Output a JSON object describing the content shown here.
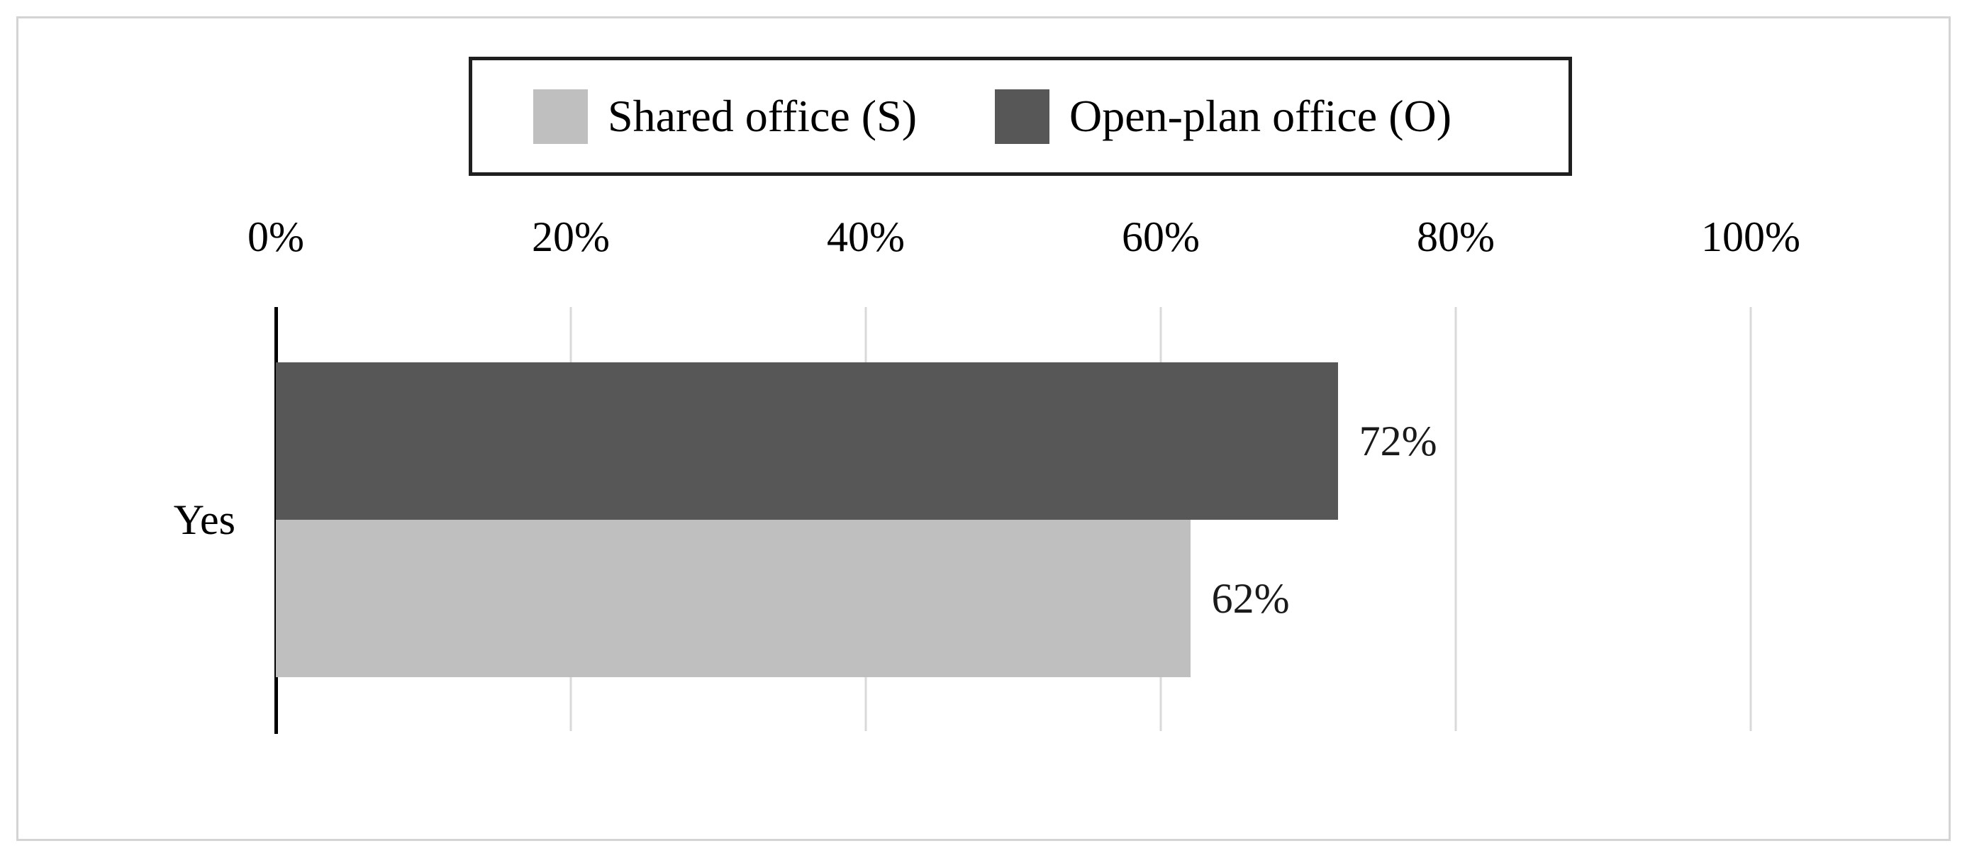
{
  "chart_data": {
    "type": "bar",
    "orientation": "horizontal",
    "title": "",
    "categories": [
      "Yes"
    ],
    "series": [
      {
        "name": "Shared office (S)",
        "values": [
          62
        ],
        "labels": [
          "62%"
        ],
        "color": "#bfbfbf"
      },
      {
        "name": "Open-plan office (O)",
        "values": [
          72
        ],
        "labels": [
          "72%"
        ],
        "color": "#575757"
      }
    ],
    "bar_row_order_top_to_bottom": [
      1,
      0
    ],
    "x_ticks": [
      0,
      20,
      40,
      60,
      80,
      100
    ],
    "x_tick_suffix": "%",
    "xlim": [
      0,
      100
    ],
    "x_axis_position": "top",
    "grid": "vertical",
    "gridline_color": "#d9d9d9",
    "axis_line_color": "#000000",
    "value_label_color": "#1a1a1a",
    "legend_position": "top-center-boxed",
    "frame_border_color": "#d4d4d4",
    "legend_border_color": "#1f1f1f"
  }
}
